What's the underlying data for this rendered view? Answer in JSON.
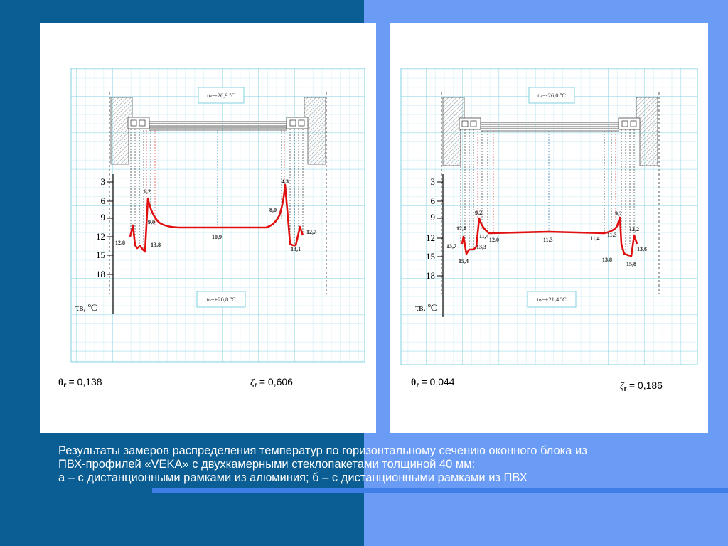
{
  "caption": {
    "line1": "Результаты замеров распределения температур по горизонтальному сечению оконного блока из",
    "line2": "ПВХ-профилей «VEKA» с двухкамерными стеклопакетами толщиной 40 мм:",
    "line3": "а – с дистанционными рамками из алюминия; б – с дистанционными рамками из ПВХ"
  },
  "panels": [
    {
      "id": "a",
      "t_out": "tн=-26,9 ºС",
      "t_in": "tв=+20,8 ºС",
      "axis_label": "τв, ºС",
      "ticks": [
        "3",
        "6",
        "9",
        "12",
        "15",
        "18"
      ],
      "theta_sym": "θ",
      "theta_sub": "г",
      "theta_val": "= 0,138",
      "zeta_sym": "ζ",
      "zeta_sub": "г",
      "zeta_val": "= 0,606",
      "labels": [
        "12,8",
        "6,2",
        "9,0",
        "13,8",
        "10,9",
        "4,3",
        "8,0",
        "12,7",
        "13,1"
      ],
      "curve_color": "#e01010"
    },
    {
      "id": "b",
      "t_out": "tн=-26,0 ºС",
      "t_in": "tв=+21,4 ºС",
      "axis_label": "τв, ºС",
      "ticks": [
        "3",
        "6",
        "9",
        "12",
        "15",
        "18"
      ],
      "theta_sym": "θ",
      "theta_sub": "г",
      "theta_val": "= 0,044",
      "zeta_sym": "ζ",
      "zeta_sub": "г",
      "zeta_val": "= 0,186",
      "labels": [
        "12,0",
        "13,7",
        "9,2",
        "11,4",
        "13,3",
        "15,4",
        "12,0",
        "11,3",
        "11,4",
        "11,3",
        "9,2",
        "12,2",
        "13,8",
        "13,6",
        "15,8"
      ],
      "curve_color": "#e01010"
    }
  ]
}
